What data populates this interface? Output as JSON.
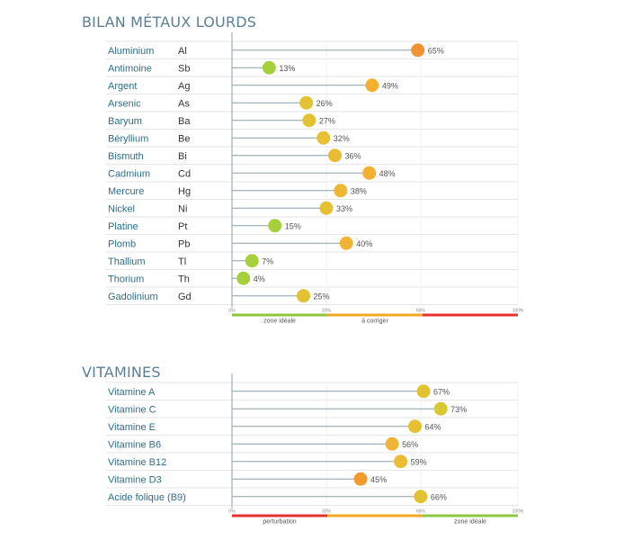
{
  "chart_data": [
    {
      "type": "lollipop",
      "title": "BILAN MÉTAUX LOURDS",
      "unit": "%",
      "xlim": [
        0,
        100
      ],
      "ticks": [
        "0%",
        "33%",
        "66%",
        "100%"
      ],
      "zones": [
        {
          "label": "zone idéale",
          "color": "#8dc63f"
        },
        {
          "label": "à corriger",
          "color": "#f5a623"
        },
        {
          "label": "",
          "color": "#e8312f"
        }
      ],
      "rows": [
        {
          "label": "Aluminium",
          "symbol": "Al",
          "value": 65,
          "value_label": "65%",
          "color": "#f39233"
        },
        {
          "label": "Antimoine",
          "symbol": "Sb",
          "value": 13,
          "value_label": "13%",
          "color": "#a6cf3c"
        },
        {
          "label": "Argent",
          "symbol": "Ag",
          "value": 49,
          "value_label": "49%",
          "color": "#f5b030"
        },
        {
          "label": "Arsenic",
          "symbol": "As",
          "value": 26,
          "value_label": "26%",
          "color": "#e2c232"
        },
        {
          "label": "Baryum",
          "symbol": "Ba",
          "value": 27,
          "value_label": "27%",
          "color": "#e2c232"
        },
        {
          "label": "Béryllium",
          "symbol": "Be",
          "value": 32,
          "value_label": "32%",
          "color": "#e8c033"
        },
        {
          "label": "Bismuth",
          "symbol": "Bi",
          "value": 36,
          "value_label": "36%",
          "color": "#eabc34"
        },
        {
          "label": "Cadmium",
          "symbol": "Cd",
          "value": 48,
          "value_label": "48%",
          "color": "#f5b030"
        },
        {
          "label": "Mercure",
          "symbol": "Hg",
          "value": 38,
          "value_label": "38%",
          "color": "#eeb835"
        },
        {
          "label": "Nickel",
          "symbol": "Ni",
          "value": 33,
          "value_label": "33%",
          "color": "#e8c033"
        },
        {
          "label": "Platine",
          "symbol": "Pt",
          "value": 15,
          "value_label": "15%",
          "color": "#a6cf3c"
        },
        {
          "label": "Plomb",
          "symbol": "Pb",
          "value": 40,
          "value_label": "40%",
          "color": "#f0b535"
        },
        {
          "label": "Thallium",
          "symbol": "Tl",
          "value": 7,
          "value_label": "7%",
          "color": "#a6cf3c"
        },
        {
          "label": "Thorium",
          "symbol": "Th",
          "value": 4,
          "value_label": "4%",
          "color": "#a6cf3c"
        },
        {
          "label": "Gadolinium",
          "symbol": "Gd",
          "value": 25,
          "value_label": "25%",
          "color": "#e2c232"
        }
      ]
    },
    {
      "type": "lollipop",
      "title": "VITAMINES",
      "unit": "%",
      "xlim": [
        0,
        100
      ],
      "ticks": [
        "0%",
        "33%",
        "66%",
        "100%"
      ],
      "zones": [
        {
          "label": "perturbation",
          "color": "#e8312f"
        },
        {
          "label": "",
          "color": "#f5a623"
        },
        {
          "label": "zone idéale",
          "color": "#8dc63f"
        }
      ],
      "rows": [
        {
          "label": "Vitamine A",
          "value": 67,
          "value_label": "67%",
          "color": "#e2c232"
        },
        {
          "label": "Vitamine C",
          "value": 73,
          "value_label": "73%",
          "color": "#d9c832"
        },
        {
          "label": "Vitamine E",
          "value": 64,
          "value_label": "64%",
          "color": "#e6c233"
        },
        {
          "label": "Vitamine B6",
          "value": 56,
          "value_label": "56%",
          "color": "#f0b535"
        },
        {
          "label": "Vitamine B12",
          "value": 59,
          "value_label": "59%",
          "color": "#ecbc34"
        },
        {
          "label": "Vitamine D3",
          "value": 45,
          "value_label": "45%",
          "color": "#f39a2e"
        },
        {
          "label": "Acide folique (B9)",
          "value": 66,
          "value_label": "66%",
          "color": "#e2c232"
        }
      ]
    }
  ],
  "colors": {
    "title": "#5b7f96",
    "label": "#2f6f8a",
    "stem": "#8aa0ad",
    "grid": "#e6e6e6"
  }
}
